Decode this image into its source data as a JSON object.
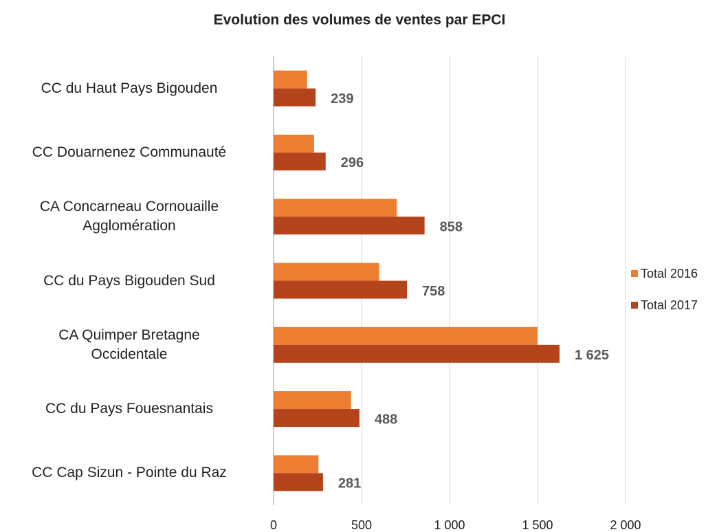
{
  "chart_data": {
    "type": "bar",
    "orientation": "horizontal",
    "title": "Evolution des volumes de ventes par EPCI",
    "categories": [
      "CC du Haut Pays Bigouden",
      "CC Douarnenez Communauté",
      "CA Concarneau Cornouaille\nAgglomération",
      "CC du Pays Bigouden Sud",
      "CA Quimper Bretagne\nOccidentale",
      "CC du Pays Fouesnantais",
      "CC Cap Sizun - Pointe du Raz"
    ],
    "series": [
      {
        "name": "Total 2016",
        "color": "#ed7d31",
        "values": [
          190,
          230,
          700,
          600,
          1500,
          440,
          255
        ]
      },
      {
        "name": "Total 2017",
        "color": "#b4441b",
        "values": [
          239,
          296,
          858,
          758,
          1625,
          488,
          281
        ],
        "value_labels": [
          "239",
          "296",
          "858",
          "758",
          "1 625",
          "488",
          "281"
        ]
      }
    ],
    "xlim": [
      0,
      2000
    ],
    "xticks": [
      0,
      500,
      {
        "value": 1000,
        "label": "1 000"
      },
      {
        "value": 1500,
        "label": "1 500"
      },
      {
        "value": 2000,
        "label": "2 000"
      }
    ],
    "grid": true,
    "legend": "right"
  }
}
